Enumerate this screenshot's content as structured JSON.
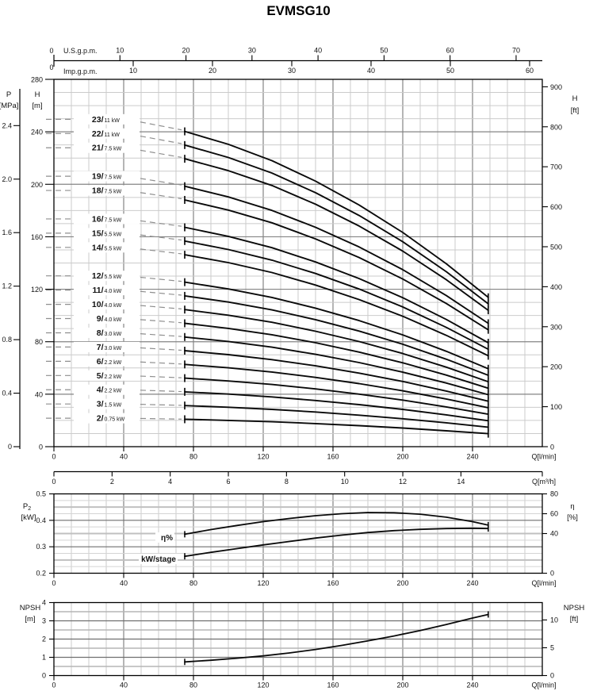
{
  "title": "EVMSG10",
  "chart_data": [
    {
      "id": "head-capacity",
      "type": "line",
      "title": "Head / capacity curves",
      "x_axis_top_us": {
        "label": "U.S.g.p.m.",
        "zero": "0",
        "ticks": [
          "10",
          "20",
          "30",
          "40",
          "50",
          "60",
          "70"
        ]
      },
      "x_axis_top_imp": {
        "label": "Imp.g.p.m.",
        "zero": "0",
        "ticks": [
          "10",
          "20",
          "30",
          "40",
          "50",
          "60"
        ]
      },
      "x_axis_bottom_lmin": {
        "label": "Q[l/min]",
        "ticks": [
          "0",
          "40",
          "80",
          "120",
          "160",
          "200",
          "240"
        ]
      },
      "x_axis_bottom_m3h": {
        "label": "Q[m³/h]",
        "ticks": [
          "0",
          "2",
          "4",
          "6",
          "8",
          "10",
          "12",
          "14"
        ]
      },
      "y_axis_pressure": {
        "label": "P",
        "unit": "[MPa]",
        "ticks": [
          "0",
          "0.4",
          "0.8",
          "1.2",
          "1.6",
          "2.0",
          "2.4"
        ]
      },
      "y_axis_head_m": {
        "label": "H",
        "unit": "[m]",
        "ticks": [
          "0",
          "40",
          "80",
          "120",
          "160",
          "200",
          "240",
          "280"
        ]
      },
      "y_axis_head_ft": {
        "label": "H",
        "unit": "[ft]",
        "ticks": [
          "0",
          "100",
          "200",
          "300",
          "400",
          "500",
          "600",
          "700",
          "800",
          "900"
        ]
      },
      "q_range_lmin": [
        75,
        249
      ],
      "per_stage_head": {
        "q_lmin": [
          75,
          100,
          125,
          150,
          175,
          200,
          225,
          249
        ],
        "h_m": [
          10.45,
          10.02,
          9.48,
          8.8,
          8.01,
          7.1,
          6.06,
          4.95
        ]
      },
      "curves": [
        {
          "stages": 23,
          "power": "11 kW"
        },
        {
          "stages": 22,
          "power": "11 kW"
        },
        {
          "stages": 21,
          "power": "7.5 kW"
        },
        {
          "stages": 19,
          "power": "7.5 kW"
        },
        {
          "stages": 18,
          "power": "7.5 kW"
        },
        {
          "stages": 16,
          "power": "7.5 kW"
        },
        {
          "stages": 15,
          "power": "5.5 kW"
        },
        {
          "stages": 14,
          "power": "5.5 kW"
        },
        {
          "stages": 12,
          "power": "5.5 kW"
        },
        {
          "stages": 11,
          "power": "4.0 kW"
        },
        {
          "stages": 10,
          "power": "4.0 kW"
        },
        {
          "stages": 9,
          "power": "4.0 kW"
        },
        {
          "stages": 8,
          "power": "3.0 kW"
        },
        {
          "stages": 7,
          "power": "3.0 kW"
        },
        {
          "stages": 6,
          "power": "2.2 kW"
        },
        {
          "stages": 5,
          "power": "2.2 kW"
        },
        {
          "stages": 4,
          "power": "2.2 kW"
        },
        {
          "stages": 3,
          "power": "1.5 kW"
        },
        {
          "stages": 2,
          "power": "0.75 kW"
        }
      ]
    },
    {
      "id": "power-efficiency",
      "type": "line",
      "title": "Power per stage / efficiency",
      "y_axis_left": {
        "label": "P",
        "label_sub": "2",
        "unit": "[kW]",
        "ticks": [
          "0.2",
          "0.3",
          "0.4",
          "0.5"
        ]
      },
      "y_axis_right": {
        "label": "η",
        "unit": "[%]",
        "ticks": [
          "0",
          "40",
          "60",
          "80"
        ]
      },
      "x_axis_bottom": {
        "label": "Q[l/min]",
        "ticks": [
          "0",
          "40",
          "80",
          "120",
          "160",
          "200",
          "240"
        ]
      },
      "series": [
        {
          "name": "η%",
          "axis": "right",
          "x": [
            75,
            90,
            105,
            120,
            135,
            150,
            165,
            180,
            195,
            210,
            225,
            240,
            249
          ],
          "y": [
            39.3,
            44.0,
            48.2,
            52.0,
            55.2,
            58.0,
            60.0,
            61.2,
            61.0,
            59.5,
            56.5,
            52.0,
            48.5
          ]
        },
        {
          "name": "kW/stage",
          "axis": "left",
          "x": [
            75,
            90,
            105,
            120,
            135,
            150,
            165,
            180,
            195,
            210,
            225,
            240,
            249
          ],
          "y": [
            0.264,
            0.279,
            0.293,
            0.307,
            0.32,
            0.333,
            0.344,
            0.354,
            0.361,
            0.366,
            0.369,
            0.37,
            0.369
          ]
        }
      ]
    },
    {
      "id": "npsh",
      "type": "line",
      "title": "NPSH",
      "y_axis_left": {
        "label": "NPSH",
        "unit": "[m]",
        "ticks": [
          "0",
          "1",
          "2",
          "3",
          "4"
        ]
      },
      "y_axis_right": {
        "label": "NPSH",
        "unit": "[ft]",
        "ticks": [
          "0",
          "5",
          "10"
        ]
      },
      "x_axis_bottom": {
        "label": "Q[l/min]",
        "ticks": [
          "0",
          "40",
          "80",
          "120",
          "160",
          "200",
          "240"
        ]
      },
      "series": [
        {
          "name": "NPSH",
          "axis": "left",
          "x": [
            75,
            90,
            105,
            120,
            135,
            150,
            165,
            180,
            195,
            210,
            225,
            240,
            249
          ],
          "y": [
            0.75,
            0.84,
            0.95,
            1.08,
            1.24,
            1.43,
            1.65,
            1.9,
            2.17,
            2.47,
            2.8,
            3.15,
            3.35
          ]
        }
      ]
    }
  ]
}
